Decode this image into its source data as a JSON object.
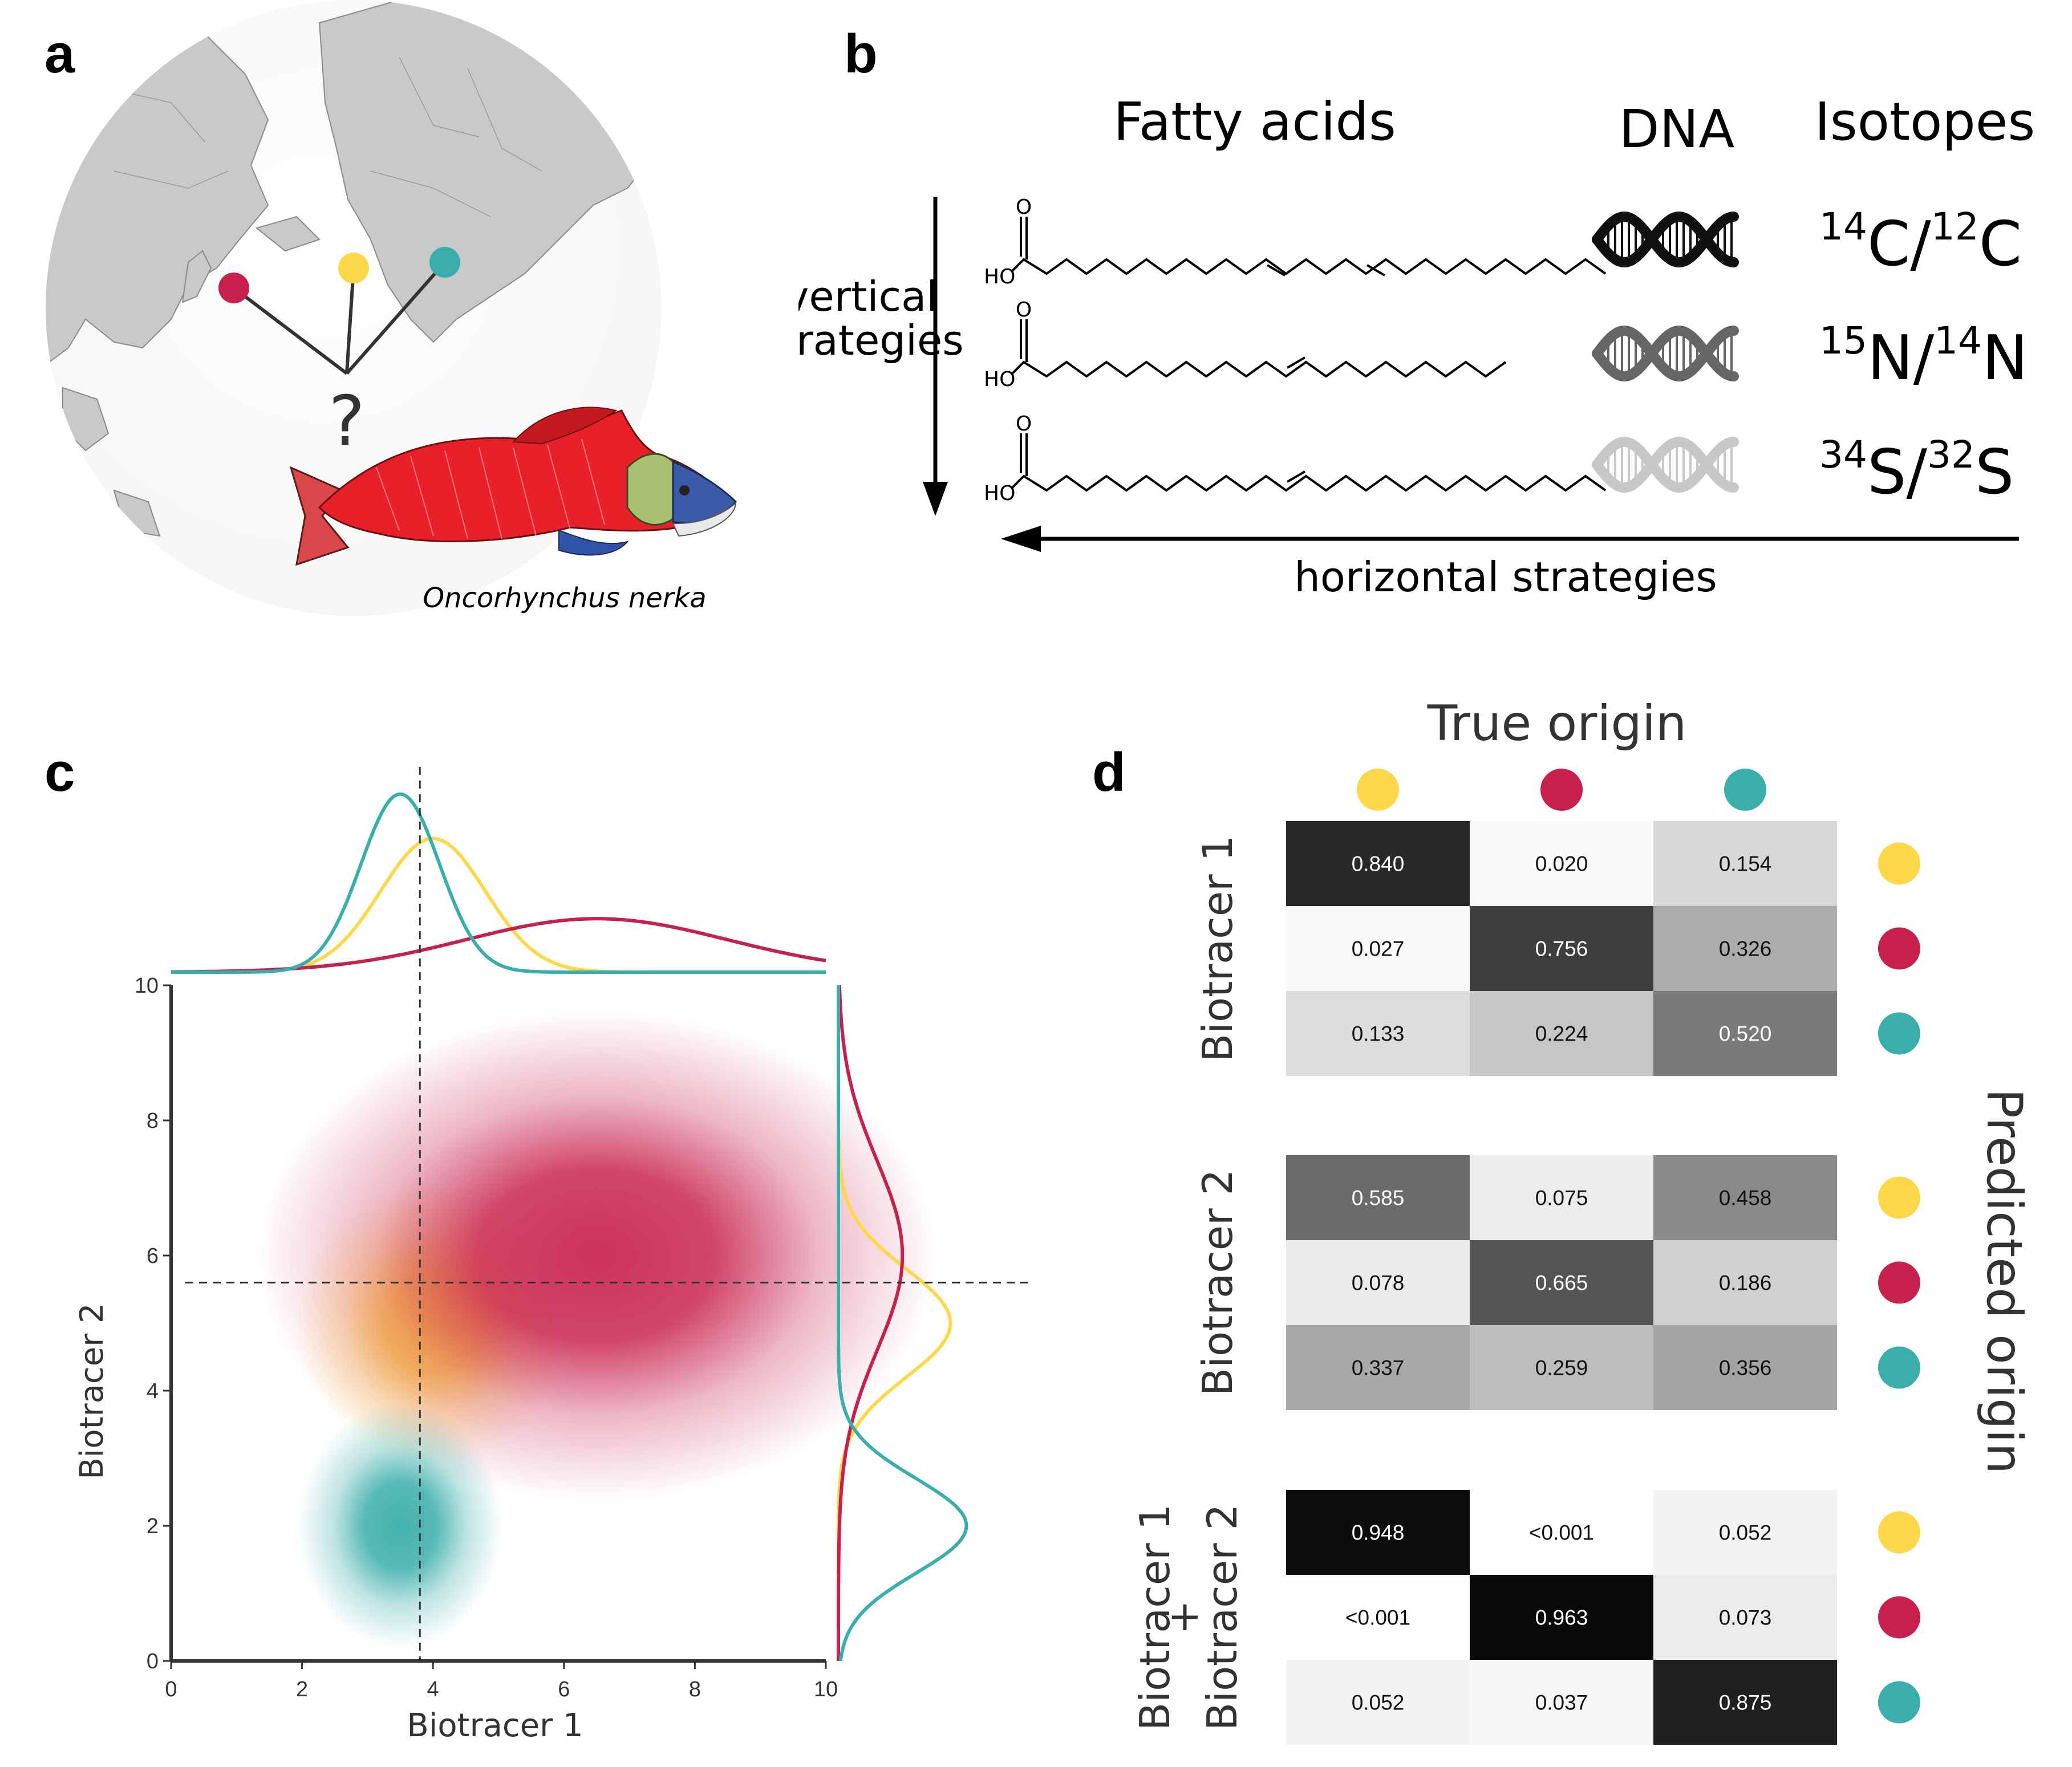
{
  "panels": {
    "a": "a",
    "b": "b",
    "c": "c",
    "d": "d"
  },
  "colors": {
    "yellow": "#FFD84A",
    "red": "#C8204D",
    "teal": "#3AAEAA"
  },
  "panel_a": {
    "question_mark": "?",
    "species": "Oncorhynchus nerka",
    "markers": [
      "red",
      "yellow",
      "teal"
    ]
  },
  "panel_b": {
    "headers": {
      "fatty_acids": "Fatty acids",
      "dna": "DNA",
      "isotopes": "Isotopes"
    },
    "vertical_label_line1": "vertical",
    "vertical_label_line2": "strategies",
    "horizontal_label": "horizontal strategies",
    "molecule_label_ho": "HO",
    "molecule_label_o": "O",
    "dna_shades": [
      "#111111",
      "#666666",
      "#C8C8C8"
    ],
    "isotopes": [
      {
        "sup1": "14",
        "el1": "C/",
        "sup2": "12",
        "el2": "C"
      },
      {
        "sup1": "15",
        "el1": "N/",
        "sup2": "14",
        "el2": "N"
      },
      {
        "sup1": "34",
        "el1": "S/",
        "sup2": "32",
        "el2": "S"
      }
    ]
  },
  "chart_data": [
    {
      "type": "scatter",
      "title": "",
      "xlabel": "Biotracer 1",
      "ylabel": "Biotracer 2",
      "xlim": [
        0,
        10
      ],
      "ylim": [
        0,
        10
      ],
      "xticks": [
        "0",
        "2",
        "4",
        "6",
        "8",
        "10"
      ],
      "yticks": [
        "0",
        "2",
        "4",
        "6",
        "8",
        "10"
      ],
      "observation": {
        "x": 3.8,
        "y": 5.6
      },
      "series": [
        {
          "name": "yellow",
          "mean_x": 4.0,
          "mean_y": 5.0,
          "sd_x": 0.8,
          "sd_y": 0.8,
          "color": "#FFD84A"
        },
        {
          "name": "red",
          "mean_x": 6.5,
          "mean_y": 6.0,
          "sd_x": 2.0,
          "sd_y": 1.4,
          "color": "#C8204D"
        },
        {
          "name": "teal",
          "mean_x": 3.5,
          "mean_y": 2.0,
          "sd_x": 0.6,
          "sd_y": 0.7,
          "color": "#3AAEAA"
        }
      ]
    },
    {
      "type": "heatmap",
      "title": "True origin",
      "ylabel": "Predicted origin",
      "columns": [
        "yellow",
        "red",
        "teal"
      ],
      "rows": [
        "yellow",
        "red",
        "teal"
      ],
      "blocks": [
        {
          "label": "Biotracer 1",
          "label2": "",
          "values": [
            [
              0.84,
              0.02,
              0.154
            ],
            [
              0.027,
              0.756,
              0.326
            ],
            [
              0.133,
              0.224,
              0.52
            ]
          ],
          "text": [
            [
              "0.840",
              "0.020",
              "0.154"
            ],
            [
              "0.027",
              "0.756",
              "0.326"
            ],
            [
              "0.133",
              "0.224",
              "0.520"
            ]
          ]
        },
        {
          "label": "Biotracer 2",
          "label2": "",
          "values": [
            [
              0.585,
              0.075,
              0.458
            ],
            [
              0.078,
              0.665,
              0.186
            ],
            [
              0.337,
              0.259,
              0.356
            ]
          ],
          "text": [
            [
              "0.585",
              "0.075",
              "0.458"
            ],
            [
              "0.078",
              "0.665",
              "0.186"
            ],
            [
              "0.337",
              "0.259",
              "0.356"
            ]
          ]
        },
        {
          "label": "Biotracer 1",
          "plus": "+",
          "label2": "Biotracer 2",
          "values": [
            [
              0.948,
              0.0005,
              0.052
            ],
            [
              0.0005,
              0.963,
              0.073
            ],
            [
              0.052,
              0.037,
              0.875
            ]
          ],
          "text": [
            [
              "0.948",
              "<0.001",
              "0.052"
            ],
            [
              "<0.001",
              "0.963",
              "0.073"
            ],
            [
              "0.052",
              "0.037",
              "0.875"
            ]
          ]
        }
      ]
    }
  ]
}
